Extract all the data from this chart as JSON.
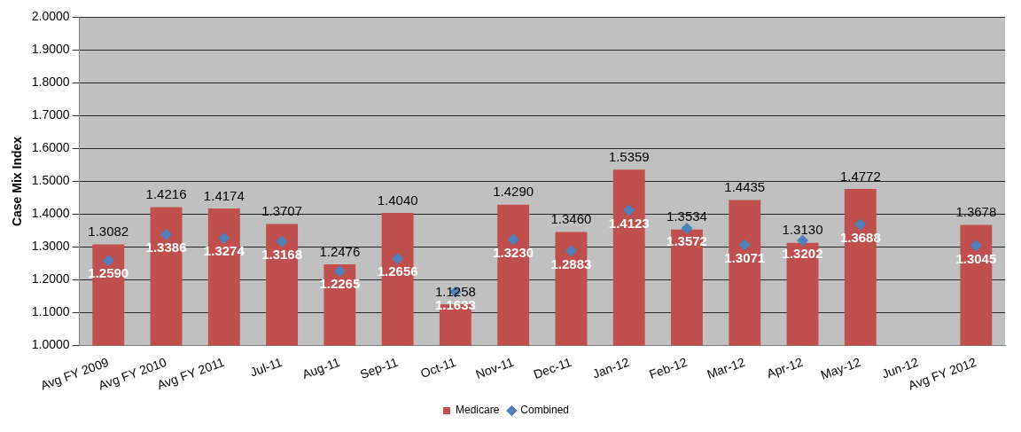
{
  "chart_data": {
    "type": "bar",
    "ylabel": "Case Mix Index",
    "categories": [
      "Avg FY 2009",
      "Avg FY 2010",
      "Avg FY 2011",
      "Jul-11",
      "Aug-11",
      "Sep-11",
      "Oct-11",
      "Nov-11",
      "Dec-11",
      "Jan-12",
      "Feb-12",
      "Mar-12",
      "Apr-12",
      "May-12",
      "Jun-12",
      "Avg FY 2012"
    ],
    "series": [
      {
        "name": "Medicare",
        "color": "#c0504d",
        "values": [
          1.3082,
          1.4216,
          1.4174,
          1.3707,
          1.2476,
          1.404,
          1.1258,
          1.429,
          1.346,
          1.5359,
          1.3534,
          1.4435,
          1.313,
          1.4772,
          null,
          1.3678
        ],
        "value_labels": [
          "1.3082",
          "1.4216",
          "1.4174",
          "1.3707",
          "1.2476",
          "1.4040",
          "1.1258",
          "1.4290",
          "1.3460",
          "1.5359",
          "1.3534",
          "1.4435",
          "1.3130",
          "1.4772",
          null,
          "1.3678"
        ]
      },
      {
        "name": "Combined",
        "type": "scatter",
        "color": "#4f81bd",
        "marker": "diamond",
        "values": [
          1.259,
          1.3386,
          1.3274,
          1.3168,
          1.2265,
          1.2656,
          1.1633,
          1.323,
          1.2883,
          1.4123,
          1.3572,
          1.3071,
          1.3202,
          1.3688,
          null,
          1.3045
        ],
        "value_labels": [
          "1.2590",
          "1.3386",
          "1.3274",
          "1.3168",
          "1.2265",
          "1.2656",
          "1.1633",
          "1.3230",
          "1.2883",
          "1.4123",
          "1.3572",
          "1.3071",
          "1.3202",
          "1.3688",
          null,
          "1.3045"
        ]
      }
    ],
    "ylim": [
      1,
      2
    ],
    "yticks": [
      {
        "value": 1,
        "label": "1.0000"
      },
      {
        "value": 1.1,
        "label": "1.1000"
      },
      {
        "value": 1.2,
        "label": "1.2000"
      },
      {
        "value": 1.3,
        "label": "1.3000"
      },
      {
        "value": 1.4,
        "label": "1.4000"
      },
      {
        "value": 1.5,
        "label": "1.5000"
      },
      {
        "value": 1.6,
        "label": "1.6000"
      },
      {
        "value": 1.7,
        "label": "1.7000"
      },
      {
        "value": 1.8,
        "label": "1.8000"
      },
      {
        "value": 1.9,
        "label": "1.9000"
      },
      {
        "value": 2,
        "label": "2.0000"
      }
    ],
    "grid": "y",
    "legend": "bottom"
  }
}
